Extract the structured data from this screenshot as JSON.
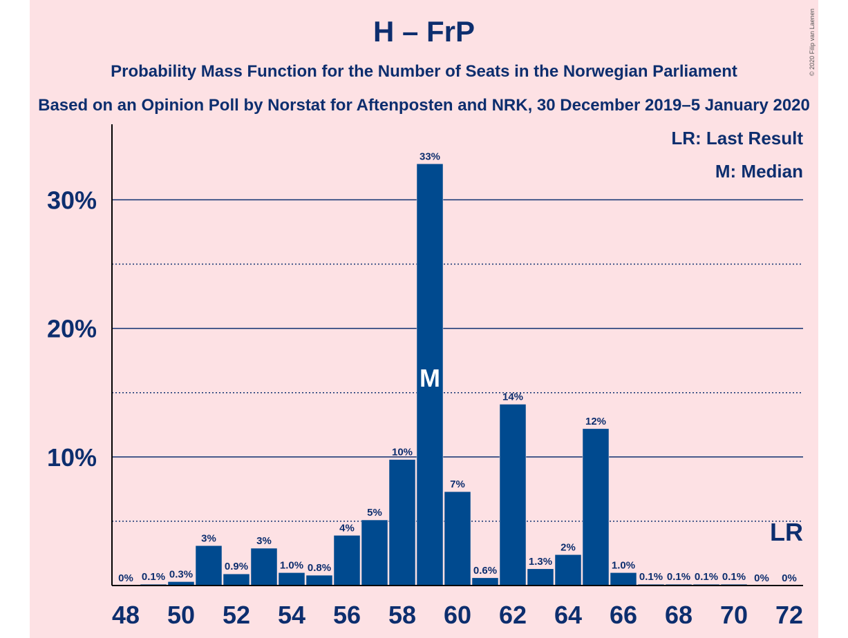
{
  "title": "H – FrP",
  "subtitle1": "Probability Mass Function for the Number of Seats in the Norwegian Parliament",
  "subtitle2": "Based on an Opinion Poll by Norstat for Aftenposten and NRK, 30 December 2019–5 January 2020",
  "copyright": "© 2020 Filip van Laenen",
  "legend": {
    "last_result": "LR: Last Result",
    "median": "M: Median"
  },
  "colors": {
    "bar": "#004a8f",
    "text": "#0d2e6e",
    "background": "#fde1e4"
  },
  "chart_data": {
    "type": "bar",
    "x": [
      48,
      49,
      50,
      51,
      52,
      53,
      54,
      55,
      56,
      57,
      58,
      59,
      60,
      61,
      62,
      63,
      64,
      65,
      66,
      67,
      68,
      69,
      70,
      71,
      72
    ],
    "values": [
      0,
      0.1,
      0.3,
      3.1,
      0.9,
      2.9,
      1.0,
      0.8,
      3.9,
      5.1,
      9.8,
      32.8,
      7.3,
      0.6,
      14.1,
      1.3,
      2.4,
      12.2,
      1.0,
      0.1,
      0.1,
      0.1,
      0.1,
      0,
      0
    ],
    "data_labels": [
      "0%",
      "0.1%",
      "0.3%",
      "3%",
      "0.9%",
      "3%",
      "1.0%",
      "0.8%",
      "4%",
      "5%",
      "10%",
      "33%",
      "7%",
      "0.6%",
      "14%",
      "1.3%",
      "2%",
      "12%",
      "1.0%",
      "0.1%",
      "0.1%",
      "0.1%",
      "0.1%",
      "0%",
      "0%"
    ],
    "x_tick_labels": [
      "48",
      "50",
      "52",
      "54",
      "56",
      "58",
      "60",
      "62",
      "64",
      "66",
      "68",
      "70",
      "72"
    ],
    "y_tick_labels": [
      "10%",
      "20%",
      "30%"
    ],
    "y_ticks": [
      10,
      20,
      30
    ],
    "y_minor_ticks": [
      5,
      15,
      25
    ],
    "ylim": [
      0,
      35.6
    ],
    "median_seat": 59,
    "median_marker": "M",
    "last_result_seat": 72,
    "last_result_marker": "LR",
    "grid": true,
    "legend_position": "top-right"
  }
}
